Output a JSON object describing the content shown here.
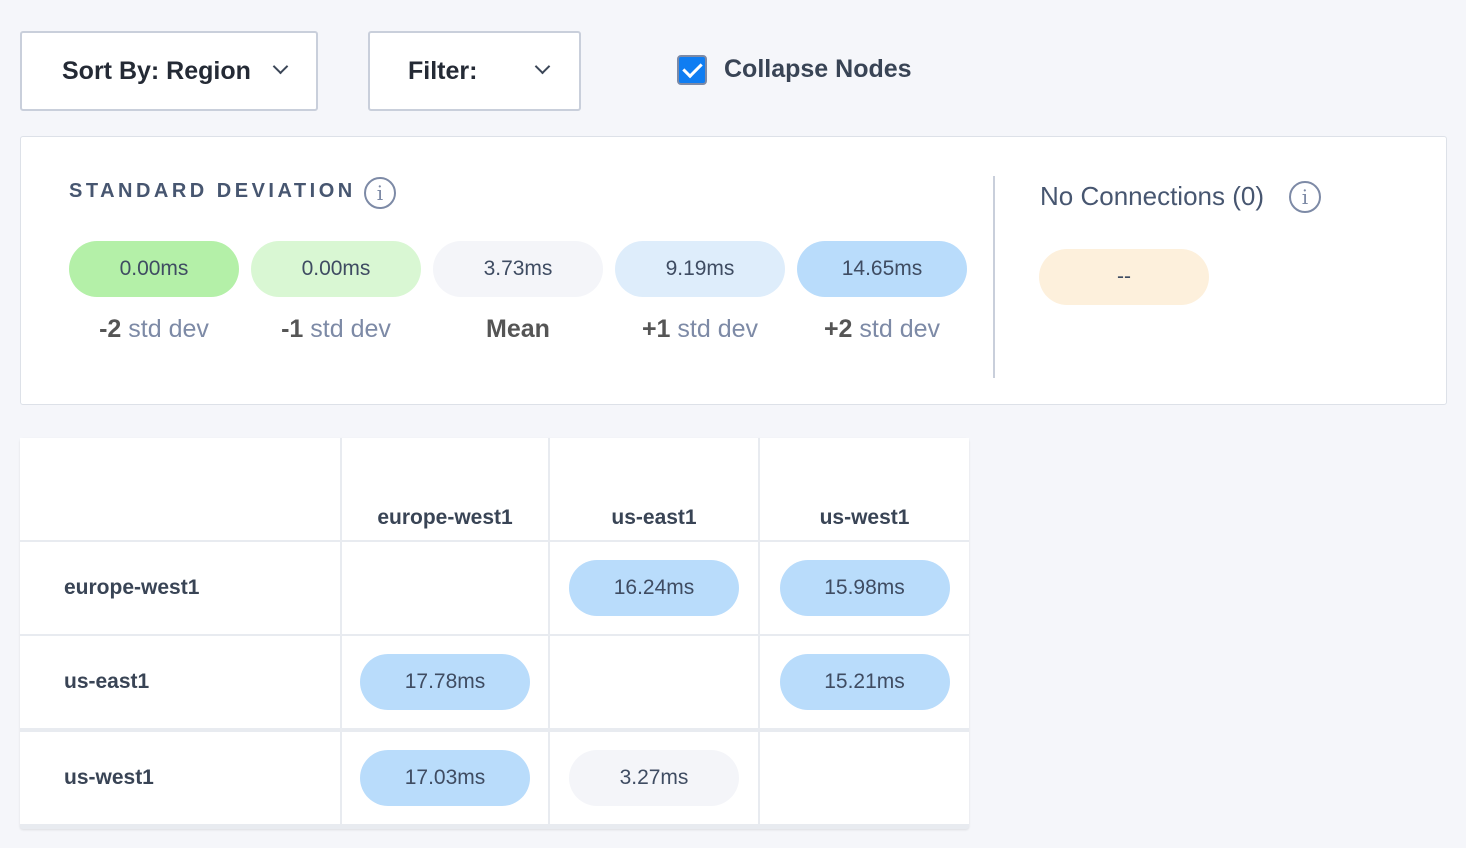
{
  "toolbar": {
    "sort_label": "Sort By: Region",
    "filter_label": "Filter:",
    "collapse_label": "Collapse Nodes",
    "collapse_checked": true
  },
  "legend": {
    "title": "STANDARD DEVIATION",
    "items": [
      {
        "value": "0.00ms",
        "prefix": "-2",
        "suffix": " std dev",
        "color": "#b4f0a8"
      },
      {
        "value": "0.00ms",
        "prefix": "-1",
        "suffix": " std dev",
        "color": "#d9f7d3"
      },
      {
        "value": "3.73ms",
        "prefix": "Mean",
        "suffix": "",
        "color": "#f4f5f9"
      },
      {
        "value": "9.19ms",
        "prefix": "+1",
        "suffix": " std dev",
        "color": "#deedfb"
      },
      {
        "value": "14.65ms",
        "prefix": "+2",
        "suffix": " std dev",
        "color": "#b9dcfb"
      }
    ],
    "no_connections_label": "No Connections (0)",
    "no_connections_value": "--",
    "no_connections_color": "#fdf0dc"
  },
  "matrix": {
    "columns": [
      "europe-west1",
      "us-east1",
      "us-west1"
    ],
    "rows": [
      {
        "label": "europe-west1",
        "cells": [
          "",
          "16.24ms",
          "15.98ms"
        ],
        "colors": [
          "",
          "#b9dcfb",
          "#b9dcfb"
        ]
      },
      {
        "label": "us-east1",
        "cells": [
          "17.78ms",
          "",
          "15.21ms"
        ],
        "colors": [
          "#b9dcfb",
          "",
          "#b9dcfb"
        ]
      },
      {
        "label": "us-west1",
        "cells": [
          "17.03ms",
          "3.27ms",
          ""
        ],
        "colors": [
          "#b9dcfb",
          "#f4f5f9",
          ""
        ]
      }
    ]
  }
}
